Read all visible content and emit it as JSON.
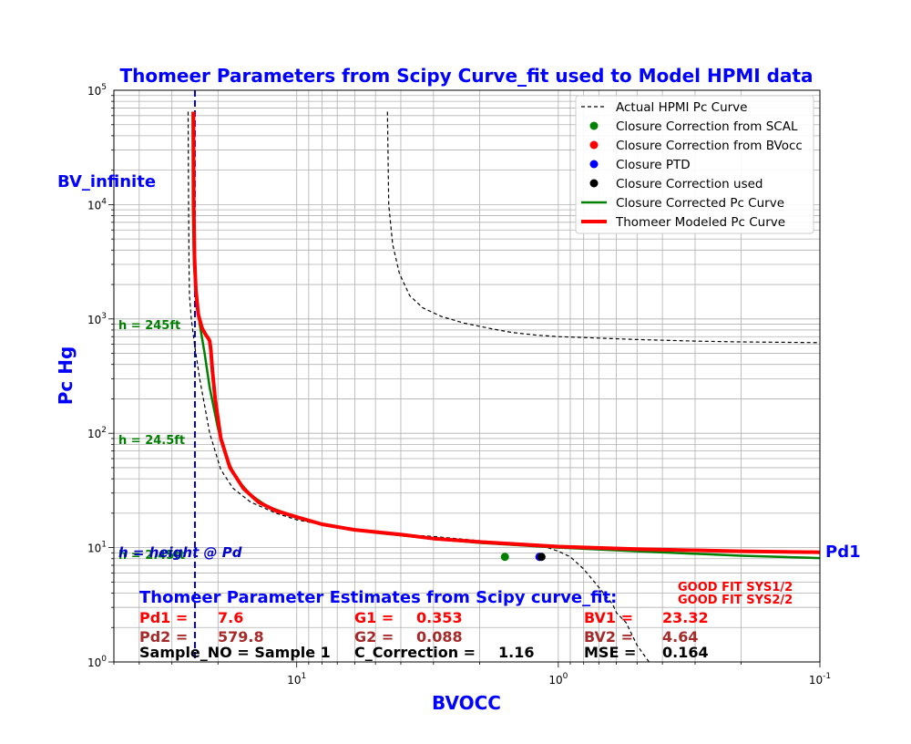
{
  "chart_data": {
    "type": "line",
    "title": "Thomeer Parameters from Scipy Curve_fit used to Model HPMI data",
    "xlabel": "BVOCC",
    "ylabel": "Pc Hg",
    "x_scale": "log",
    "x_reversed": true,
    "xlim": [
      50,
      0.1
    ],
    "y_scale": "log",
    "ylim": [
      1,
      100000
    ],
    "grid": true,
    "x_tick_labels": [
      "10^1",
      "10^0",
      "10^-1"
    ],
    "y_tick_labels": [
      "10^0",
      "10^1",
      "10^2",
      "10^3",
      "10^4",
      "10^5"
    ],
    "x_tick_values": [
      10,
      1,
      0.1
    ],
    "y_tick_values": [
      1,
      10,
      100,
      1000,
      10000,
      100000
    ],
    "legend_position": "top-right",
    "legend": [
      {
        "label": "Actual HPMI Pc Curve",
        "style": "dashed",
        "color": "#000000"
      },
      {
        "label": "Closure Correction from SCAL",
        "style": "marker",
        "color": "#008000"
      },
      {
        "label": "Closure Correction from BVocc",
        "style": "marker",
        "color": "#ff0000"
      },
      {
        "label": "Closure PTD",
        "style": "marker",
        "color": "#0000ff"
      },
      {
        "label": "Closure Correction used",
        "style": "marker",
        "color": "#000000"
      },
      {
        "label": "Closure Corrected Pc Curve",
        "style": "line",
        "color": "#008000"
      },
      {
        "label": "Thomeer Modeled Pc Curve",
        "style": "thick-line",
        "color": "#ff0000"
      }
    ],
    "series": [
      {
        "name": "Actual HPMI Pc Curve (lower)",
        "color": "#000000",
        "dash": true,
        "width": 1.2,
        "x": [
          26,
          25.9,
          25.8,
          25.7,
          25.3,
          24.6,
          23.5,
          21.5,
          19.5,
          17.5,
          15,
          12,
          10,
          7,
          5,
          3,
          2,
          1.3,
          1.2,
          1.1,
          1.0,
          0.9,
          0.8,
          0.7,
          0.62,
          0.6,
          0.55,
          0.5,
          0.45
        ],
        "y": [
          65000,
          10000,
          3000,
          1600,
          1000,
          600,
          300,
          100,
          48,
          33,
          25,
          20,
          17.5,
          15,
          13.5,
          12.5,
          11.5,
          10.7,
          10.4,
          10,
          9.3,
          8.3,
          6.5,
          4.5,
          3.2,
          2.7,
          2.2,
          1.4,
          1.0
        ]
      },
      {
        "name": "Actual HPMI Pc Curve (upper)",
        "color": "#000000",
        "dash": true,
        "width": 1.2,
        "x": [
          4.5,
          4.45,
          4.3,
          4.05,
          3.7,
          3.3,
          2.8,
          2.3,
          1.8,
          1.5,
          1.2,
          1.0,
          0.7,
          0.5,
          0.3,
          0.2,
          0.1
        ],
        "y": [
          65000,
          10000,
          4500,
          2500,
          1600,
          1250,
          1050,
          920,
          820,
          760,
          720,
          700,
          680,
          660,
          640,
          630,
          620
        ]
      },
      {
        "name": "Closure Corrected Pc Curve",
        "color": "#008000",
        "dash": false,
        "width": 2.5,
        "x": [
          25,
          24.95,
          24.7,
          24.2,
          23.5,
          22.5,
          21.5,
          20,
          18.5,
          17,
          15,
          13,
          11,
          9,
          7,
          5,
          3,
          2,
          1,
          0.5,
          0.2,
          0.1
        ],
        "y": [
          65000,
          10000,
          3000,
          1500,
          900,
          500,
          250,
          110,
          60,
          40,
          29,
          23,
          20,
          17,
          15,
          13.5,
          12,
          11,
          10,
          9.3,
          8.5,
          8.1
        ]
      },
      {
        "name": "Thomeer Modeled Pc Curve",
        "color": "#ff0000",
        "dash": false,
        "width": 4,
        "x": [
          24.8,
          24.75,
          24.6,
          24.3,
          23.8,
          23,
          22.3,
          21.8,
          21.5,
          21.3,
          21.0,
          20.5,
          19.5,
          18,
          16,
          14,
          12,
          10,
          8,
          6,
          4,
          3,
          2,
          1,
          0.5,
          0.2,
          0.1
        ],
        "y": [
          65000,
          10000,
          3500,
          1800,
          1100,
          830,
          730,
          680,
          640,
          540,
          350,
          200,
          90,
          50,
          33,
          25,
          21,
          18.5,
          16,
          14.3,
          13,
          12,
          11.2,
          10.2,
          9.7,
          9.3,
          9.1
        ]
      }
    ],
    "points": [
      {
        "name": "Closure Correction from SCAL",
        "x": 1.6,
        "y": 8.3,
        "color": "#008000"
      },
      {
        "name": "Closure Correction from BVocc",
        "x": 1.18,
        "y": 8.3,
        "color": "#ff0000"
      },
      {
        "name": "Closure PTD",
        "x": 1.18,
        "y": 8.3,
        "color": "#0000ff"
      },
      {
        "name": "Closure Correction used",
        "x": 1.16,
        "y": 8.3,
        "color": "#000000"
      }
    ],
    "vline": {
      "name": "BV_infinite",
      "x": 24.5,
      "color": "#0000cc"
    },
    "annotations": {
      "bv_infinite": "BV_infinite",
      "pd1": "Pd1",
      "height_at_pd": "h = height @ Pd",
      "h_245": "h = 245ft",
      "h_24_5": "h = 24.5ft",
      "h_2_45": "h = 2.45ft",
      "estimates_title": "Thomeer Parameter Estimates from Scipy curve_fit:",
      "good_fit_1": "GOOD FIT SYS1/2",
      "good_fit_2": "GOOD FIT SYS2/2"
    },
    "params": {
      "pd1_label": "Pd1 =",
      "pd1_value": "7.6",
      "pd2_label": "Pd2 =",
      "pd2_value": "579.8",
      "g1_label": "G1 =",
      "g1_value": "0.353",
      "g2_label": "G2 =",
      "g2_value": "0.088",
      "bv1_label": "BV1 =",
      "bv1_value": "23.32",
      "bv2_label": "BV2 =",
      "bv2_value": "4.64",
      "sample_text": "Sample_NO = Sample 1",
      "ccorr_label": "C_Correction  =",
      "ccorr_value": "1.16",
      "mse_label": "MSE  =",
      "mse_value": "0.164"
    }
  }
}
